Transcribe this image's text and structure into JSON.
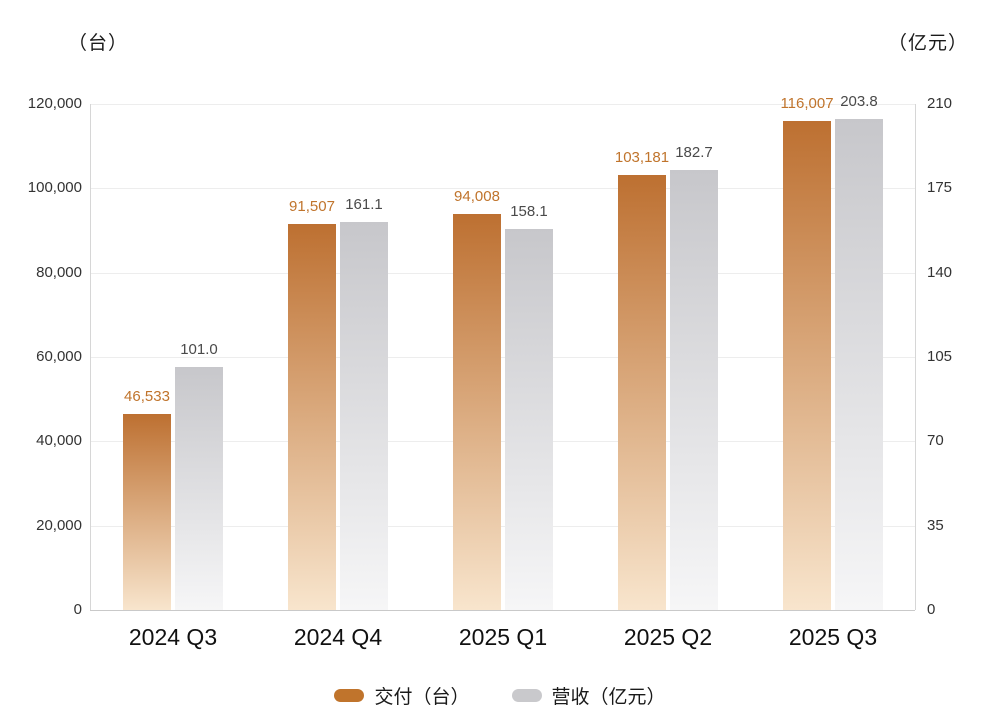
{
  "left_axis": {
    "unit_label": "（台）",
    "ticks": [
      {
        "value": 0,
        "label": "0"
      },
      {
        "value": 20000,
        "label": "20,000"
      },
      {
        "value": 40000,
        "label": "40,000"
      },
      {
        "value": 60000,
        "label": "60,000"
      },
      {
        "value": 80000,
        "label": "80,000"
      },
      {
        "value": 100000,
        "label": "100,000"
      },
      {
        "value": 120000,
        "label": "120,000"
      }
    ],
    "max": 120000
  },
  "right_axis": {
    "unit_label": "（亿元）",
    "ticks": [
      {
        "value": 0,
        "label": "0"
      },
      {
        "value": 35,
        "label": "35"
      },
      {
        "value": 70,
        "label": "70"
      },
      {
        "value": 105,
        "label": "105"
      },
      {
        "value": 140,
        "label": "140"
      },
      {
        "value": 175,
        "label": "175"
      },
      {
        "value": 210,
        "label": "210"
      }
    ],
    "max": 210
  },
  "legend": {
    "items": [
      {
        "label": "交付（台）",
        "color": "#C0742C"
      },
      {
        "label": "营收（亿元）",
        "color": "#C9C9CC"
      }
    ]
  },
  "chart_data": {
    "type": "bar",
    "categories": [
      "2024 Q3",
      "2024 Q4",
      "2025 Q1",
      "2025 Q2",
      "2025 Q3"
    ],
    "series": [
      {
        "name": "交付（台）",
        "axis": "left",
        "values": [
          46533,
          91507,
          94008,
          103181,
          116007
        ],
        "labels": [
          "46,533",
          "91,507",
          "94,008",
          "103,181",
          "116,007"
        ],
        "color_top": "#BD7031",
        "color_bottom": "#F8E5CD",
        "label_color": "#C0742C"
      },
      {
        "name": "营收（亿元）",
        "axis": "right",
        "values": [
          101.0,
          161.1,
          158.1,
          182.7,
          203.8
        ],
        "labels": [
          "101.0",
          "161.1",
          "158.1",
          "182.7",
          "203.8"
        ],
        "color_top": "#C7C7CB",
        "color_bottom": "#F6F6F7",
        "label_color": "#4a4a4a"
      }
    ],
    "left_ylim": [
      0,
      120000
    ],
    "right_ylim": [
      0,
      210
    ],
    "grid": true,
    "legend_position": "bottom"
  }
}
